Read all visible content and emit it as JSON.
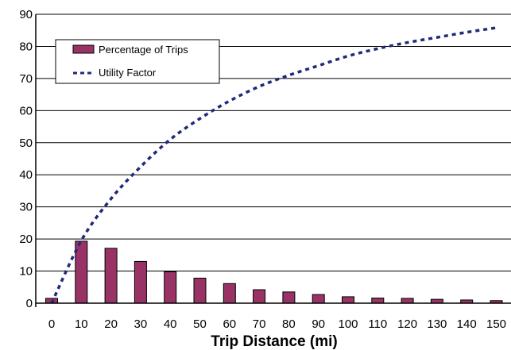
{
  "chart_data": {
    "type": "bar",
    "xlabel": "Trip Distance (mi)",
    "ylabel": "",
    "ylim": [
      0,
      90
    ],
    "y_ticks": [
      0,
      10,
      20,
      30,
      40,
      50,
      60,
      70,
      80,
      90
    ],
    "categories": [
      "0",
      "10",
      "20",
      "30",
      "40",
      "50",
      "60",
      "70",
      "80",
      "90",
      "100",
      "110",
      "120",
      "130",
      "140",
      "150"
    ],
    "grid": "horizontal",
    "legend_position": "top-left",
    "series": [
      {
        "name": "Percentage of Trips",
        "kind": "bar",
        "color": "#993366",
        "values": [
          1.5,
          19.3,
          17.1,
          13.0,
          9.8,
          7.8,
          6.1,
          4.2,
          3.5,
          2.7,
          2.0,
          1.6,
          1.5,
          1.2,
          1.0,
          0.8
        ]
      },
      {
        "name": "Utility Factor",
        "kind": "line",
        "style": "dashed",
        "color": "#1f2a7a",
        "values": [
          0,
          19.5,
          32.5,
          42.5,
          51,
          57.5,
          63,
          67.5,
          71,
          74,
          77,
          79.3,
          81.2,
          82.8,
          84.4,
          85.8
        ]
      }
    ]
  }
}
